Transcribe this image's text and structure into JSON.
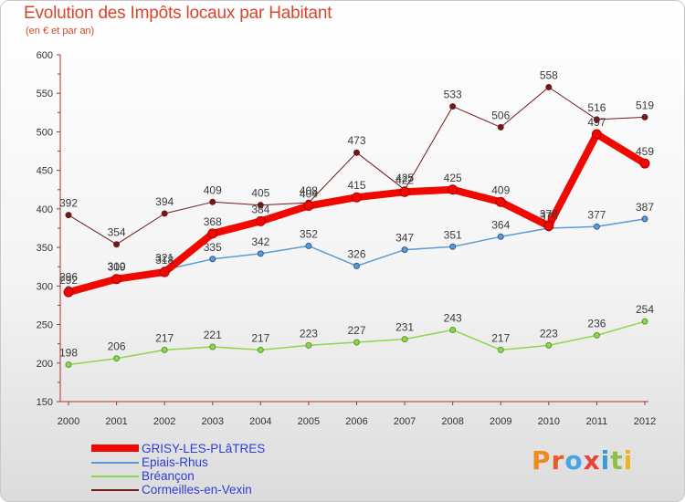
{
  "title": "Evolution des Impôts locaux par Habitant",
  "subtitle": "(en € et par an)",
  "logo": {
    "text": "Proxiti",
    "letters": [
      "P",
      "r",
      "o",
      "x",
      "i",
      "t",
      "i"
    ],
    "colors": [
      "#f08a1e",
      "#e85b2a",
      "#46a6e6",
      "#e8423a",
      "#3a9ad9",
      "#8cc04a",
      "#f0b21e"
    ]
  },
  "chart_data": {
    "type": "line",
    "title": "Evolution des Impôts locaux par Habitant",
    "ylabel": "(en € et par an)",
    "xlabel": "",
    "x": [
      "2000",
      "2001",
      "2002",
      "2003",
      "2004",
      "2005",
      "2006",
      "2007",
      "2008",
      "2009",
      "2010",
      "2011",
      "2012"
    ],
    "ylim": [
      150,
      600
    ],
    "yticks": [
      "150",
      "200",
      "250",
      "300",
      "350",
      "400",
      "450",
      "500",
      "550",
      "600"
    ],
    "grid": false,
    "series": [
      {
        "name": "Cormeilles-en-Vexin",
        "color": "#6e1a1a",
        "labels": [
          "392",
          "354",
          "394",
          "409",
          "405",
          "408",
          "473",
          "425",
          "533",
          "506",
          "558",
          "516",
          "519"
        ],
        "values": [
          392,
          354,
          394,
          409,
          405,
          408,
          473,
          425,
          533,
          506,
          558,
          516,
          519
        ]
      },
      {
        "name": "Bréançon",
        "color": "#8fd44f",
        "labels": [
          "198",
          "206",
          "217",
          "221",
          "217",
          "223",
          "227",
          "231",
          "243",
          "217",
          "223",
          "236",
          "254"
        ],
        "values": [
          198,
          206,
          217,
          221,
          217,
          223,
          227,
          231,
          243,
          217,
          223,
          236,
          254
        ]
      },
      {
        "name": "Epiais-Rhus",
        "color": "#5a9bd5",
        "labels": [
          "296",
          "310",
          "321",
          "335",
          "342",
          "352",
          "326",
          "347",
          "351",
          "364",
          "375",
          "377",
          "387"
        ],
        "values": [
          296,
          310,
          321,
          335,
          342,
          352,
          326,
          347,
          351,
          364,
          375,
          377,
          387
        ]
      },
      {
        "name": "GRISY-LES-PLâTRES",
        "color": "#ee0a00",
        "labels": [
          "292",
          "309",
          "318",
          "368",
          "384",
          "404",
          "415",
          "422",
          "425",
          "409",
          "378",
          "497",
          "459"
        ],
        "values": [
          292,
          309,
          318,
          368,
          384,
          404,
          415,
          422,
          425,
          409,
          378,
          497,
          459
        ]
      }
    ],
    "legend": [
      "GRISY-LES-PLâTRES",
      "Epiais-Rhus",
      "Bréançon",
      "Cormeilles-en-Vexin"
    ],
    "legend_position": "bottom-left"
  }
}
